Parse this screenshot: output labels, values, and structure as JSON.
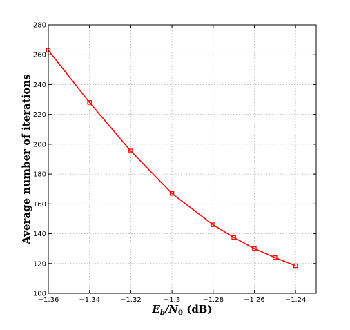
{
  "chart_data": {
    "type": "line",
    "xlabel_main": "E",
    "xlabel_sub_b": "b",
    "xlabel_slash": "/N",
    "xlabel_sub_0": "0",
    "xlabel_unit": " (dB)",
    "ylabel": "Average number of iterations",
    "xlim": [
      -1.36,
      -1.23
    ],
    "ylim": [
      100,
      280
    ],
    "x_ticks": [
      -1.36,
      -1.34,
      -1.32,
      -1.3,
      -1.28,
      -1.26,
      -1.24
    ],
    "x_tick_labels": [
      "−1.36",
      "−1.34",
      "−1.32",
      "−1.3",
      "−1.28",
      "−1.26",
      "−1.24"
    ],
    "y_ticks": [
      100,
      120,
      140,
      160,
      180,
      200,
      220,
      240,
      260,
      280
    ],
    "y_tick_labels": [
      "100",
      "120",
      "140",
      "160",
      "180",
      "200",
      "220",
      "240",
      "260",
      "280"
    ],
    "grid": true,
    "series": [
      {
        "color": "#ff0000",
        "marker": "square",
        "x": [
          -1.36,
          -1.34,
          -1.32,
          -1.3,
          -1.28,
          -1.27,
          -1.26,
          -1.25,
          -1.24
        ],
        "y": [
          263,
          228,
          195.5,
          167,
          146,
          137.5,
          130,
          124,
          118.5
        ]
      }
    ]
  }
}
